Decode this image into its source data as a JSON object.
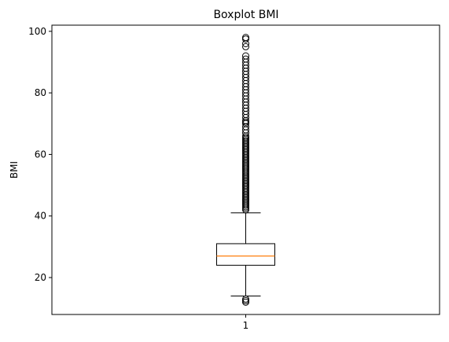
{
  "chart_data": {
    "type": "boxplot",
    "title": "Boxplot BMI",
    "xlabel": "",
    "ylabel": "BMI",
    "ylim": [
      8,
      102
    ],
    "yticks": [
      20,
      40,
      60,
      80,
      100
    ],
    "categories": [
      "1"
    ],
    "boxes": [
      {
        "category": "1",
        "whisker_low": 14,
        "q1": 24,
        "median": 27,
        "q3": 31,
        "whisker_high": 41,
        "outliers_high": [
          42,
          42.5,
          43,
          43.5,
          44,
          44.5,
          45,
          45.5,
          46,
          46.5,
          47,
          47.5,
          48,
          48.5,
          49,
          49.5,
          50,
          50.5,
          51,
          51.5,
          52,
          52.5,
          53,
          53.5,
          54,
          54.5,
          55,
          55.5,
          56,
          56.5,
          57,
          57.5,
          58,
          58.5,
          59,
          59.5,
          60,
          60.5,
          61,
          61.5,
          62,
          62.5,
          63,
          63.5,
          64,
          64.5,
          65,
          65.5,
          66,
          67,
          68,
          69,
          70,
          70.5,
          71,
          72,
          73,
          74,
          75,
          76,
          77,
          78,
          79,
          80,
          81,
          82,
          83,
          84,
          85,
          86,
          87,
          88,
          89,
          90,
          91,
          92,
          95,
          96,
          97.5,
          98
        ],
        "outliers_low": [
          12,
          12.5,
          13
        ]
      }
    ],
    "colors": {
      "box": "#000000",
      "median": "#ff7f0e"
    },
    "grid": false,
    "legend": "none"
  }
}
